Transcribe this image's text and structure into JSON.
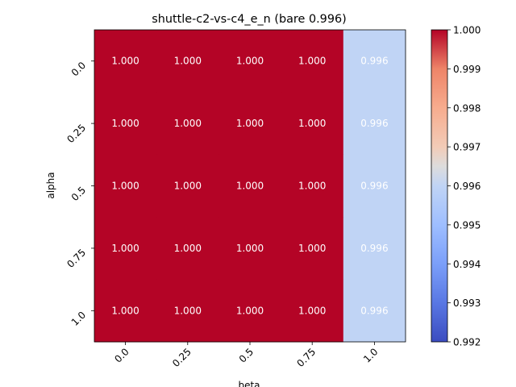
{
  "chart_data": {
    "type": "heatmap",
    "title": "shuttle-c2-vs-c4_e_n (bare 0.996)",
    "xlabel": "beta",
    "ylabel": "alpha",
    "x_categories": [
      "0.0",
      "0.25",
      "0.5",
      "0.75",
      "1.0"
    ],
    "y_categories": [
      "0.0",
      "0.25",
      "0.5",
      "0.75",
      "1.0"
    ],
    "values": [
      [
        1.0,
        1.0,
        1.0,
        1.0,
        0.996
      ],
      [
        1.0,
        1.0,
        1.0,
        1.0,
        0.996
      ],
      [
        1.0,
        1.0,
        1.0,
        1.0,
        0.996
      ],
      [
        1.0,
        1.0,
        1.0,
        1.0,
        0.996
      ],
      [
        1.0,
        1.0,
        1.0,
        1.0,
        0.996
      ]
    ],
    "value_labels": [
      [
        "1.000",
        "1.000",
        "1.000",
        "1.000",
        "0.996"
      ],
      [
        "1.000",
        "1.000",
        "1.000",
        "1.000",
        "0.996"
      ],
      [
        "1.000",
        "1.000",
        "1.000",
        "1.000",
        "0.996"
      ],
      [
        "1.000",
        "1.000",
        "1.000",
        "1.000",
        "0.996"
      ],
      [
        "1.000",
        "1.000",
        "1.000",
        "1.000",
        "0.996"
      ]
    ],
    "colormap": "coolwarm",
    "vmin": 0.992,
    "vmax": 1.0,
    "colorbar_ticks": [
      "0.992",
      "0.993",
      "0.994",
      "0.995",
      "0.996",
      "0.997",
      "0.998",
      "0.999",
      "1.000"
    ],
    "colors": {
      "high": "#b40426",
      "mid": "#dddcdc",
      "low": "#3b4cc0",
      "annotation": "#ffffff"
    }
  }
}
